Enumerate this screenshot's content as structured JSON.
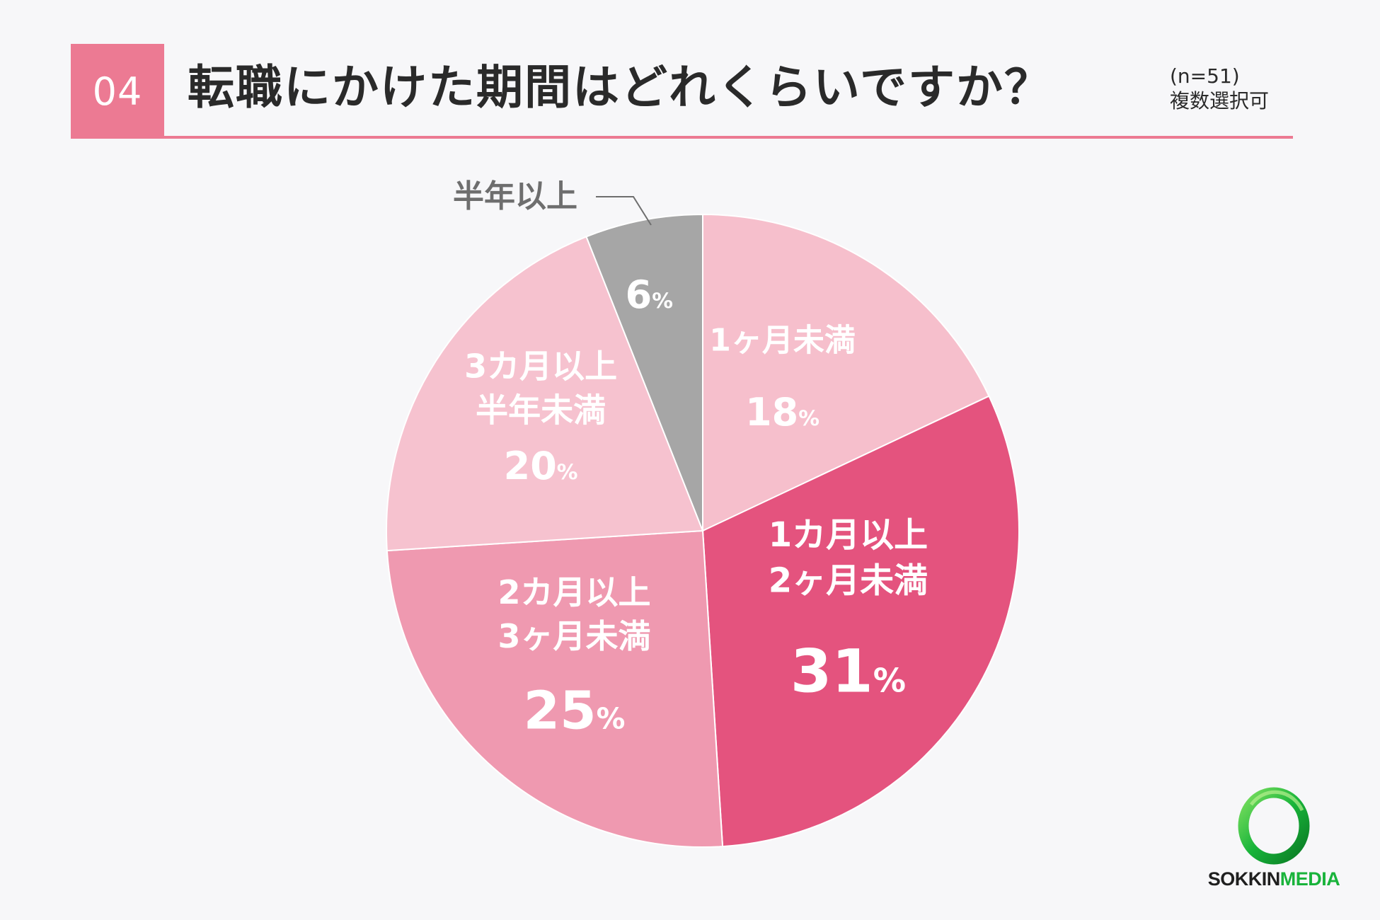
{
  "header": {
    "number": "04",
    "title": "転職にかけた期間はどれくらいですか？",
    "note_n": "(n=51)",
    "note_multi": "複数選択可"
  },
  "chart_data": {
    "type": "pie",
    "title": "転職にかけた期間はどれくらいですか？",
    "slices": [
      {
        "label": "1ヶ月未満",
        "label_lines": [
          "1ヶ月未満"
        ],
        "value": 18,
        "color": "#f6bfcc"
      },
      {
        "label": "1カ月以上2ヶ月未満",
        "label_lines": [
          "1カ月以上",
          "2ヶ月未満"
        ],
        "value": 31,
        "color": "#e4537e"
      },
      {
        "label": "2カ月以上3ヶ月未満",
        "label_lines": [
          "2カ月以上",
          "3ヶ月未満"
        ],
        "value": 25,
        "color": "#ef99b0"
      },
      {
        "label": "3カ月以上半年未満",
        "label_lines": [
          "3カ月以上",
          "半年未満"
        ],
        "value": 20,
        "color": "#f6c2cf"
      },
      {
        "label": "半年以上",
        "label_lines": [],
        "outside_label": "半年以上",
        "value": 6,
        "color": "#a6a6a6"
      }
    ],
    "unit": "%"
  },
  "logo": {
    "text_a": "SOKKIN",
    "text_b": "MEDIA",
    "colors": {
      "dark": "#1f1f1f",
      "green": "#19b33b"
    }
  }
}
